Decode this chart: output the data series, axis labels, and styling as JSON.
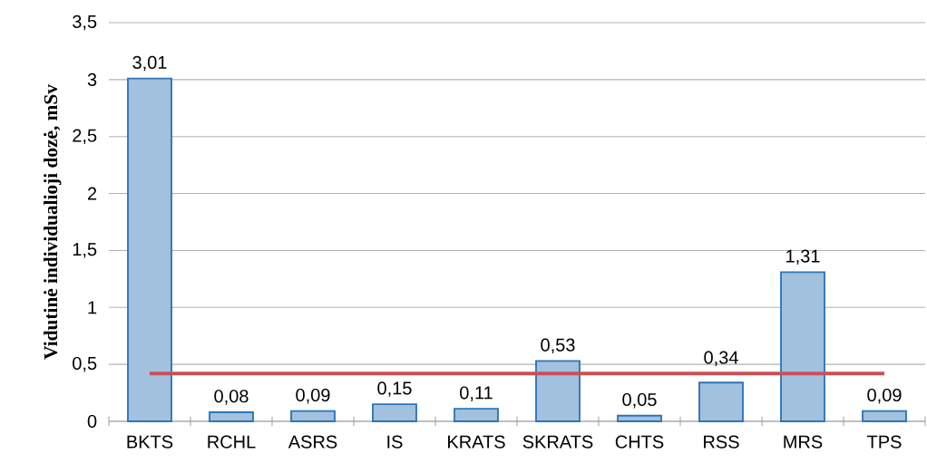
{
  "chart_data": {
    "type": "bar",
    "ylabel": "Vidutinė individualioji dozė, mSv",
    "categories": [
      "BKTS",
      "RCHL",
      "ASRS",
      "IS",
      "KRATS",
      "SKRATS",
      "CHTS",
      "RSS",
      "MRS",
      "TPS"
    ],
    "series": [
      {
        "color": "#2e75b6",
        "values": [
          3.01,
          0.08,
          0.09,
          0.15,
          0.11,
          0.53,
          0.05,
          0.34,
          1.31,
          0.09
        ],
        "value_labels": [
          "3,01",
          "0,08",
          "0,09",
          "0,15",
          "0,11",
          "0,53",
          "0,05",
          "0,34",
          "1,31",
          "0,09"
        ]
      },
      {
        "type": "line",
        "color": "#c8505a",
        "values": [
          0.42,
          0.42,
          0.42,
          0.42,
          0.42,
          0.42,
          0.42,
          0.42,
          0.42,
          0.42
        ]
      }
    ],
    "ylim": [
      0,
      3.5
    ],
    "yticks": [
      0,
      {
        "value": 0.5,
        "label": "0,5"
      },
      1,
      {
        "value": 1.5,
        "label": "1,5"
      },
      2,
      {
        "value": 2.5,
        "label": "2,5"
      },
      3,
      {
        "value": 3.5,
        "label": "3,5"
      }
    ],
    "grid": "y",
    "marker": "none"
  }
}
